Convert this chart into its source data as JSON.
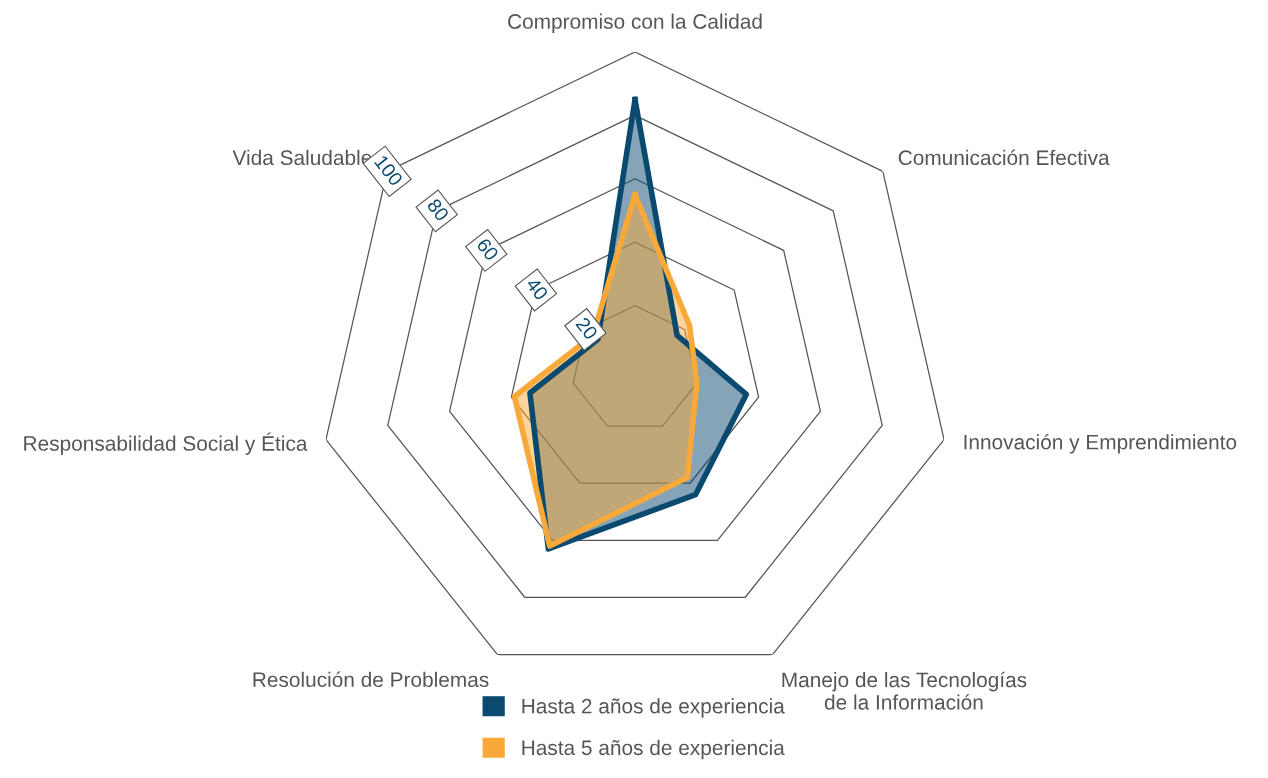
{
  "chart_data": {
    "type": "radar",
    "categories": [
      "Compromiso con la Calidad",
      "Comunicación Efectiva",
      "Innovación y Emprendimiento",
      "Manejo de las Tecnologías\nde la Información",
      "Resolución de Problemas",
      "Responsabilidad Social y Ética",
      "Vida Saludable"
    ],
    "series": [
      {
        "name": "Hasta 2 años de experiencia",
        "color": "#0b4a6f",
        "values": [
          85,
          17,
          36,
          44,
          63,
          34,
          15
        ]
      },
      {
        "name": "Hasta 5 años de experiencia",
        "color": "#f9a93a",
        "values": [
          55,
          22,
          20,
          38,
          62,
          39,
          17
        ]
      }
    ],
    "ylim": [
      0,
      100
    ],
    "yticks": [
      20,
      40,
      60,
      80,
      100
    ],
    "grid": true,
    "legend": "bottom"
  }
}
